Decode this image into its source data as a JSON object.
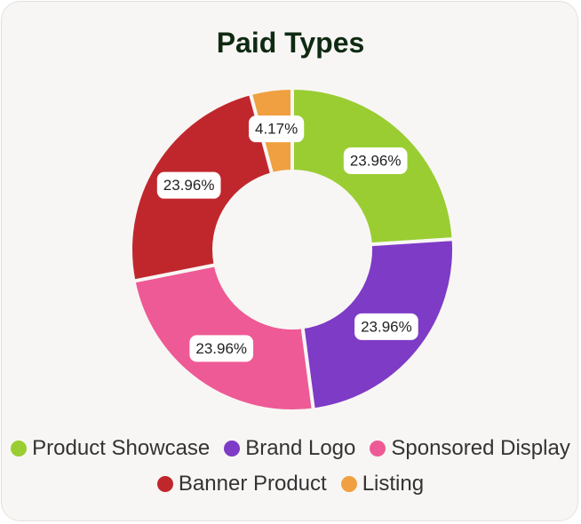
{
  "chart_data": {
    "type": "pie",
    "title": "Paid Types",
    "categories": [
      "Product Showcase",
      "Brand Logo",
      "Sponsored Display",
      "Banner Product",
      "Listing"
    ],
    "values": [
      23.96,
      23.96,
      23.96,
      23.96,
      4.17
    ],
    "value_labels": [
      "23.96%",
      "23.96%",
      "23.96%",
      "23.96%",
      "4.17%"
    ],
    "colors": [
      "#9acd32",
      "#7e3bc6",
      "#ee5a95",
      "#c0272d",
      "#f0a040"
    ],
    "legend": "bottom"
  }
}
